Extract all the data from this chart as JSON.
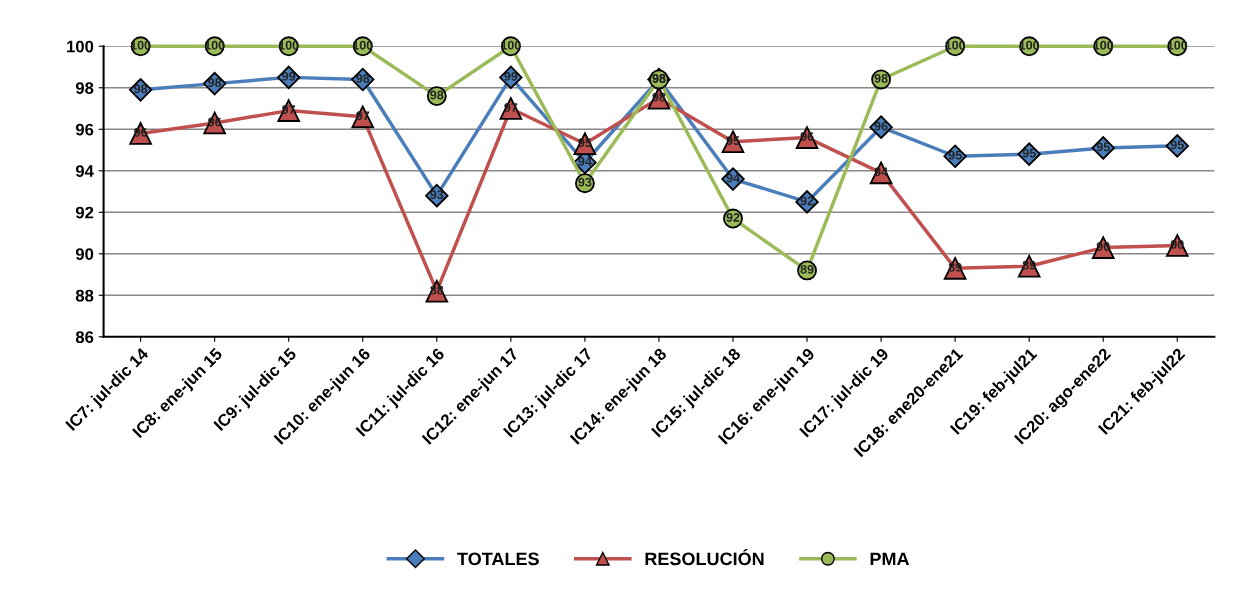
{
  "chart_data": {
    "type": "line",
    "categories": [
      "IC7: jul-dic 14",
      "IC8: ene-jun 15",
      "IC9: jul-dic 15",
      "IC10: ene-jun 16",
      "IC11: jul-dic 16",
      "IC12: ene-jun 17",
      "IC13: jul-dic 17",
      "IC14: ene-jun 18",
      "IC15: jul-dic 18",
      "IC16: ene-jun 19",
      "IC17: jul-dic 19",
      "IC18: ene20-ene21",
      "IC19: feb-jul21",
      "IC20: ago-ene22",
      "IC21: feb-jul22"
    ],
    "series": [
      {
        "name": "TOTALES",
        "color": "#4a7ebb",
        "marker": "diamond",
        "values": [
          97.9,
          98.2,
          98.5,
          98.4,
          92.8,
          98.5,
          94.4,
          98.4,
          93.6,
          92.5,
          96.1,
          94.7,
          94.8,
          95.1,
          95.2
        ],
        "value_labels": [
          "98",
          "98",
          "99",
          "98",
          "93",
          "99",
          "94",
          "98",
          "94",
          "92",
          "96",
          "95",
          "95",
          "95",
          "95"
        ]
      },
      {
        "name": "RESOLUCIÓN",
        "color": "#c0504d",
        "marker": "triangle",
        "values": [
          95.8,
          96.3,
          96.9,
          96.6,
          88.2,
          97.0,
          95.3,
          97.5,
          95.4,
          95.6,
          93.9,
          89.3,
          89.4,
          90.3,
          90.4
        ],
        "value_labels": [
          "96",
          "96",
          "97",
          "97",
          "88",
          "97",
          "95",
          "98",
          "95",
          "96",
          "94",
          "89",
          "89",
          "90",
          "90"
        ]
      },
      {
        "name": "PMA",
        "color": "#9bbb59",
        "marker": "circle",
        "values": [
          100,
          100,
          100,
          100,
          97.6,
          100,
          93.4,
          98.4,
          91.7,
          89.2,
          98.4,
          100,
          100,
          100,
          100
        ],
        "value_labels": [
          "100",
          "100",
          "100",
          "100",
          "98",
          "100",
          "93",
          "98",
          "92",
          "89",
          "98",
          "100",
          "100",
          "100",
          "100"
        ]
      }
    ],
    "ylim": [
      86,
      100
    ],
    "yticks": [
      86,
      88,
      90,
      92,
      94,
      96,
      98,
      100
    ],
    "grid": "y",
    "legend": "bottom"
  }
}
